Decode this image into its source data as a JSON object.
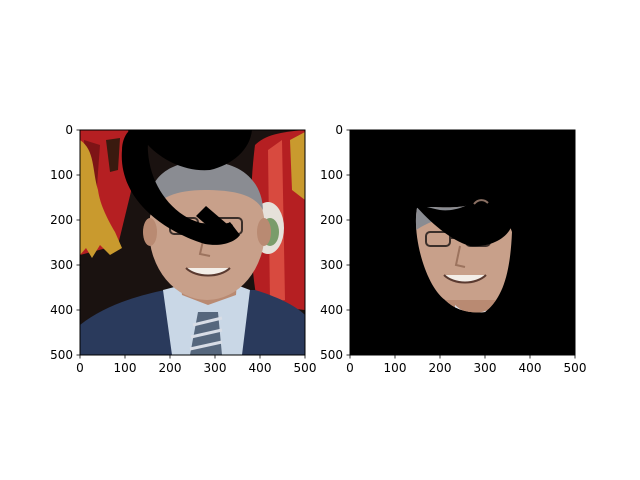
{
  "chart_data": [
    {
      "type": "image",
      "title": "",
      "xlabel": "",
      "ylabel": "",
      "xlim": [
        0,
        500
      ],
      "ylim": [
        500,
        0
      ],
      "xticks": [
        0,
        100,
        200,
        300,
        400,
        500
      ],
      "yticks": [
        0,
        100,
        200,
        300,
        400,
        500
      ],
      "grid": false,
      "content": "photo of a man in a suit with a black occluding mask across the upper face"
    },
    {
      "type": "image",
      "title": "",
      "xlabel": "",
      "ylabel": "",
      "xlim": [
        0,
        500
      ],
      "ylim": [
        500,
        0
      ],
      "xticks": [
        0,
        100,
        200,
        300,
        400,
        500
      ],
      "yticks": [
        0,
        100,
        200,
        300,
        400,
        500
      ],
      "grid": false,
      "content": "segmented face region on a black background"
    }
  ],
  "colors": {
    "frame": "#000000",
    "background": "#ffffff",
    "skin": "#c8a08a",
    "suit": "#2a3a5c",
    "shirt": "#c9d7e6",
    "hair": "#8a8c92",
    "flag_red": "#b51f22",
    "flag_gold": "#c99a2e",
    "backdrop": "#1a1210"
  }
}
